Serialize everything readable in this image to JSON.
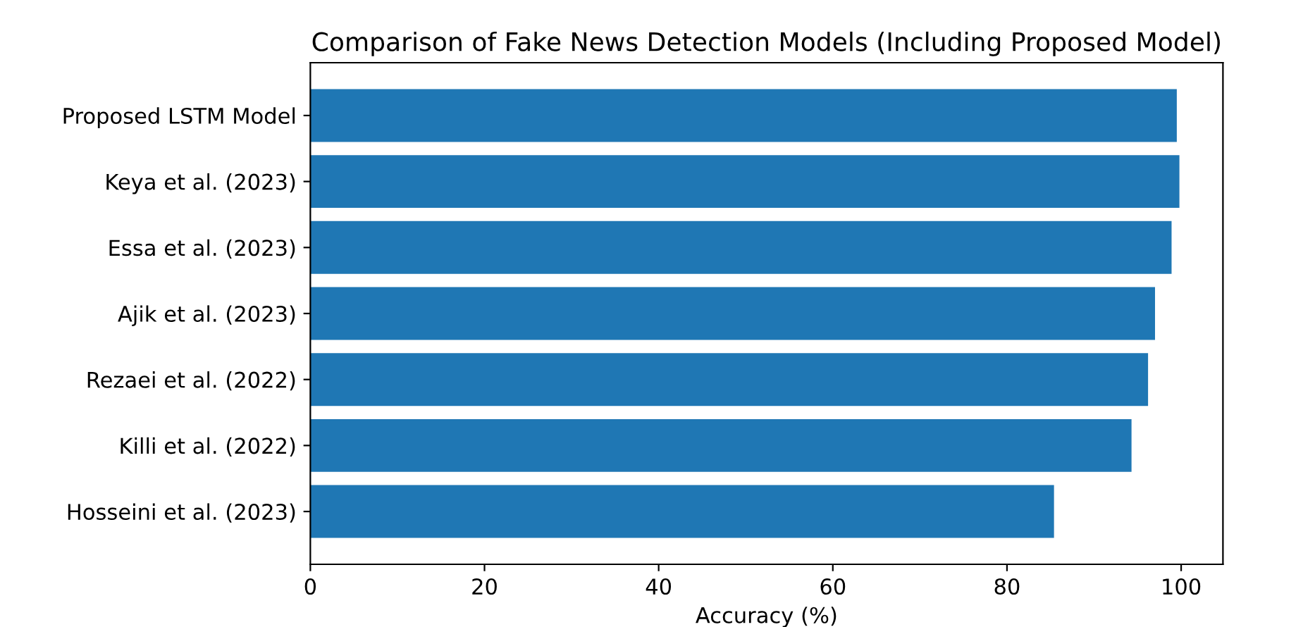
{
  "chart_data": {
    "type": "bar",
    "orientation": "horizontal",
    "title": "Comparison of Fake News Detection Models (Including Proposed Model)",
    "xlabel": "Accuracy (%)",
    "categories": [
      "Proposed LSTM Model",
      "Keya et al. (2023)",
      "Essa et al. (2023)",
      "Ajik et al. (2023)",
      "Rezaei et al. (2022)",
      "Killi et al. (2022)",
      "Hosseini et al. (2023)"
    ],
    "values": [
      99.5,
      99.8,
      98.9,
      97.0,
      96.2,
      94.3,
      85.4
    ],
    "color": "#1f77b4",
    "xlim": [
      0,
      104.8
    ],
    "xticks": [
      0,
      20,
      40,
      60,
      80,
      100
    ],
    "grid": false,
    "legend": false
  }
}
